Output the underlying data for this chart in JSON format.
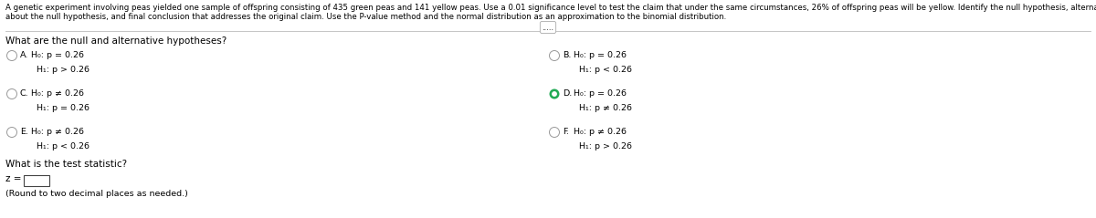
{
  "bg_color": "#ffffff",
  "header_text_line1": "A genetic experiment involving peas yielded one sample of offspring consisting of 435 green peas and 141 yellow peas. Use a 0.01 significance level to test the claim that under the same circumstances, 26% of offspring peas will be yellow. Identify the null hypothesis, alternative hypothesis, test statistic, P-value, conclusion",
  "header_text_line2": "about the null hypothesis, and final conclusion that addresses the original claim. Use the P-value method and the normal distribution as an approximation to the binomial distribution.",
  "question1": "What are the null and alternative hypotheses?",
  "options": [
    {
      "label": "A.",
      "h0": "H₀: p = 0.26",
      "h1": "H₁: p > 0.26",
      "selected": false,
      "col": 0,
      "row": 0
    },
    {
      "label": "B.",
      "h0": "H₀: p = 0.26",
      "h1": "H₁: p < 0.26",
      "selected": false,
      "col": 1,
      "row": 0
    },
    {
      "label": "C.",
      "h0": "H₀: p ≠ 0.26",
      "h1": "H₁: p = 0.26",
      "selected": false,
      "col": 0,
      "row": 1
    },
    {
      "label": "D.",
      "h0": "H₀: p = 0.26",
      "h1": "H₁: p ≠ 0.26",
      "selected": true,
      "col": 1,
      "row": 1
    },
    {
      "label": "E.",
      "h0": "H₀: p ≠ 0.26",
      "h1": "H₁: p < 0.26",
      "selected": false,
      "col": 0,
      "row": 2
    },
    {
      "label": "F.",
      "h0": "H₀: p ≠ 0.26",
      "h1": "H₁: p > 0.26",
      "selected": false,
      "col": 1,
      "row": 2
    }
  ],
  "question2": "What is the test statistic?",
  "z_label": "z =",
  "z_note": "(Round to two decimal places as needed.)",
  "text_color": "#000000",
  "light_gray": "#999999",
  "selected_color": "#22aa55",
  "font_size_header": 6.2,
  "font_size_body": 7.5,
  "font_size_small": 6.8
}
